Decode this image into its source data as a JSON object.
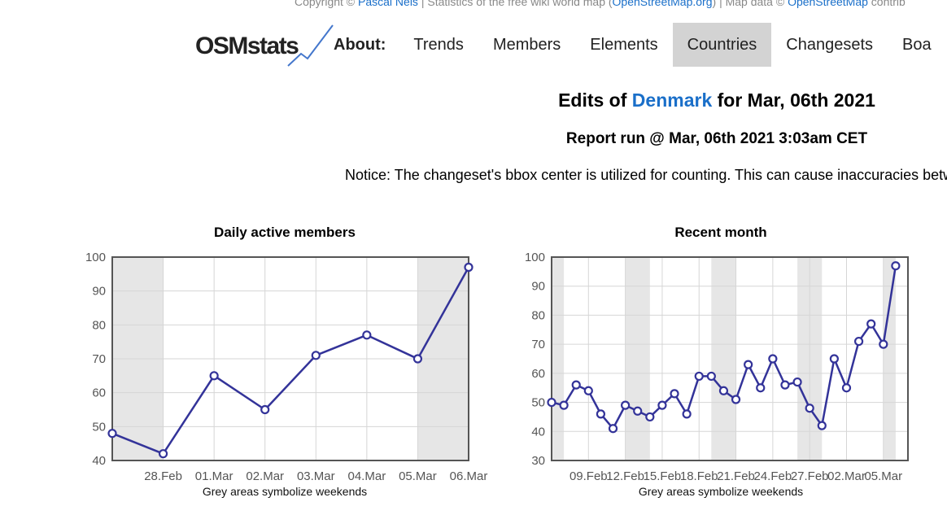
{
  "copyright": {
    "prefix": "Copyright © ",
    "author": "Pascal Neis",
    "middle": " | Statistics of the free wiki world map (",
    "osm_link": "OpenStreetMap.org",
    "suffix": ") | Map data © ",
    "osm_link2": "OpenStreetMap",
    "end": " contrib"
  },
  "logo": {
    "text": "OSMstats"
  },
  "nav": {
    "about": "About:",
    "items": [
      "Trends",
      "Members",
      "Elements",
      "Countries",
      "Changesets",
      "Boa"
    ],
    "active": "Countries"
  },
  "headline": {
    "prefix": "Edits of ",
    "country": "Denmark",
    "suffix": " for Mar, 06th 2021"
  },
  "report": "Report run @ Mar, 06th 2021 3:03am CET",
  "notice": "Notice: The changeset's bbox center is utilized for counting. This can cause inaccuracies betw",
  "colors": {
    "line": "#333399",
    "weekend": "#e6e6e6",
    "link": "#1a6fc9",
    "nav_active": "#d3d3d3"
  },
  "chart_data": [
    {
      "type": "line",
      "title": "Daily active members",
      "caption": "Grey areas symbolize weekends",
      "ylim": [
        40,
        100
      ],
      "yticks": [
        40,
        50,
        60,
        70,
        80,
        90,
        100
      ],
      "x": [
        0,
        1,
        2,
        3,
        4,
        5,
        6,
        7
      ],
      "xlim": [
        0,
        7
      ],
      "xtick_labels": [
        {
          "x": 1,
          "label": "28.Feb"
        },
        {
          "x": 2,
          "label": "01.Mar"
        },
        {
          "x": 3,
          "label": "02.Mar"
        },
        {
          "x": 4,
          "label": "03.Mar"
        },
        {
          "x": 5,
          "label": "04.Mar"
        },
        {
          "x": 6,
          "label": "05.Mar"
        },
        {
          "x": 7,
          "label": "06.Mar"
        }
      ],
      "weekends": [
        [
          0,
          1
        ],
        [
          6,
          7
        ]
      ],
      "values": [
        48,
        42,
        65,
        55,
        71,
        77,
        70,
        97
      ],
      "grid": true
    },
    {
      "type": "line",
      "title": "Recent month",
      "caption": "Grey areas symbolize weekends",
      "ylim": [
        30,
        100
      ],
      "yticks": [
        30,
        40,
        50,
        60,
        70,
        80,
        90,
        100
      ],
      "xlim": [
        0,
        29
      ],
      "xtick_labels": [
        {
          "x": 3,
          "label": "09.Feb"
        },
        {
          "x": 6,
          "label": "12.Feb"
        },
        {
          "x": 9,
          "label": "15.Feb"
        },
        {
          "x": 12,
          "label": "18.Feb"
        },
        {
          "x": 15,
          "label": "21.Feb"
        },
        {
          "x": 18,
          "label": "24.Feb"
        },
        {
          "x": 21,
          "label": "27.Feb"
        },
        {
          "x": 24,
          "label": "02.Mar"
        },
        {
          "x": 27,
          "label": "05.Mar"
        }
      ],
      "weekends": [
        [
          0,
          1
        ],
        [
          6,
          8
        ],
        [
          13,
          15
        ],
        [
          20,
          22
        ],
        [
          27,
          28
        ]
      ],
      "values": [
        50,
        49,
        56,
        54,
        46,
        41,
        49,
        47,
        45,
        49,
        53,
        46,
        59,
        59,
        54,
        51,
        63,
        55,
        65,
        56,
        57,
        48,
        42,
        65,
        55,
        71,
        77,
        70,
        97
      ],
      "grid": true
    }
  ]
}
